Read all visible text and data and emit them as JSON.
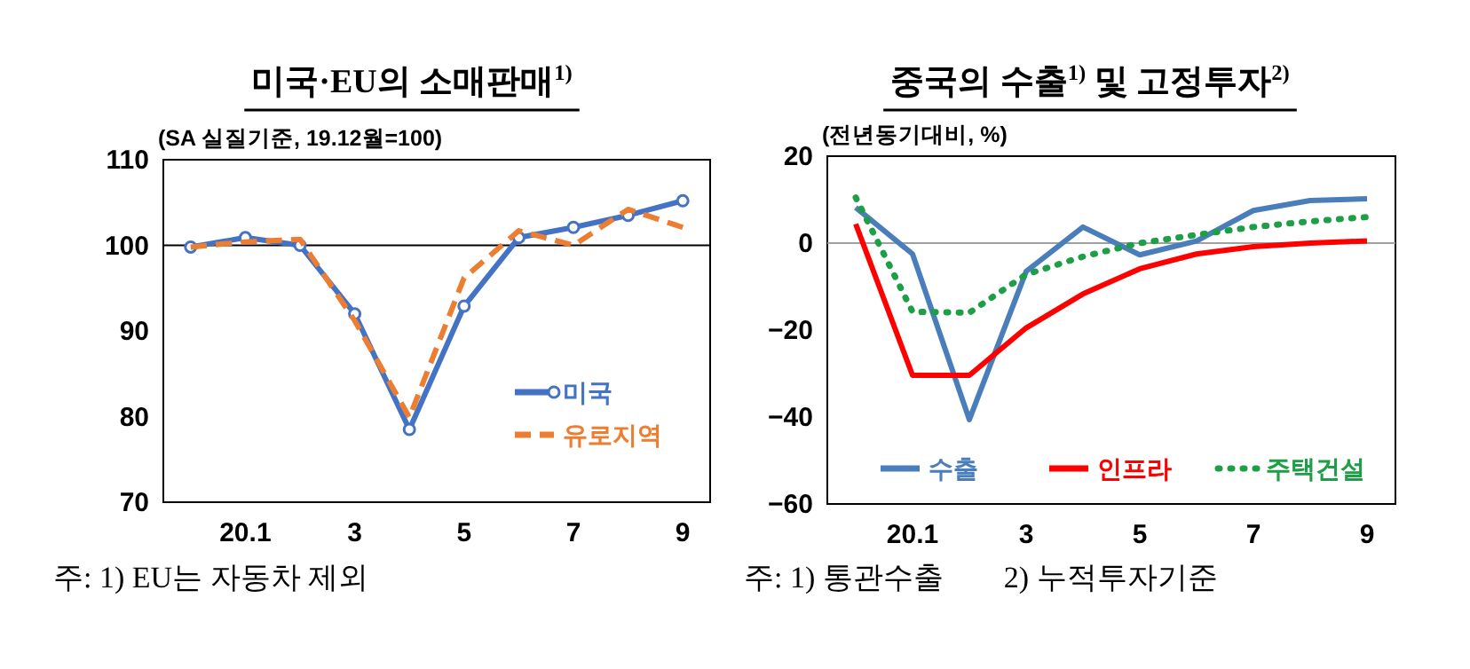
{
  "chart_data": [
    {
      "type": "line",
      "title": "미국·EU의 소매판매$^{1)}$",
      "ylabel": "(SA 실질기준, 19.12월=100)",
      "categories": [
        null,
        "20.1",
        null,
        "3",
        null,
        "5",
        null,
        "7",
        null,
        "9"
      ],
      "series": [
        {
          "name": "미국",
          "color": "#4472c4",
          "marker": "circle",
          "line_style": "solid",
          "values": [
            99.8,
            100.9,
            100,
            92,
            78.5,
            92.9,
            100.9,
            102.1,
            103.5,
            105.2
          ]
        },
        {
          "name": "유로지역",
          "color": "#ed7d31",
          "marker": "none",
          "line_style": "dashed",
          "values": [
            99.8,
            100.4,
            100.7,
            91.2,
            79.9,
            96.2,
            101.7,
            100,
            104.2,
            102.1
          ]
        }
      ],
      "ylim": [
        70,
        110
      ],
      "yticks": [
        70,
        80,
        90,
        100,
        110
      ],
      "ref_lines": [
        {
          "axis": "y",
          "value": 100,
          "color": "#000000"
        }
      ],
      "legend": "bottom right",
      "grid": false,
      "annotations": [
        "주: 1) EU는 자동차 제외"
      ]
    },
    {
      "type": "line",
      "title": "중국의 수출$^{1)}$ 및 고정투자$^{2)}$",
      "ylabel": "(전년동기대비, %)",
      "categories": [
        null,
        "20.1",
        null,
        "3",
        null,
        "5",
        null,
        "7",
        null,
        "9"
      ],
      "series": [
        {
          "name": "수출",
          "color": "#4a7ebb",
          "marker": "none",
          "line_style": "solid",
          "values": [
            8.2,
            -2.5,
            -40.6,
            -6.5,
            3.7,
            -2.7,
            0.5,
            7.5,
            9.8,
            10.2
          ]
        },
        {
          "name": "인프라",
          "color": "#ff0000",
          "marker": "none",
          "line_style": "solid",
          "values": [
            4.4,
            -30.4,
            -30.4,
            -19.5,
            -11.7,
            -5.9,
            -2.5,
            -0.8,
            0,
            0.5
          ]
        },
        {
          "name": "주택건설",
          "color": "#1e9e46",
          "marker": "none",
          "line_style": "dotted",
          "values": [
            10.5,
            -15.8,
            -16,
            -7.2,
            -3.1,
            0,
            1.9,
            3.7,
            5,
            6
          ]
        }
      ],
      "ylim": [
        -60,
        20
      ],
      "yticks": [
        -60,
        -40,
        -20,
        0,
        20
      ],
      "ref_lines": [
        {
          "axis": "y",
          "value": 0,
          "color": "#a0a0a0"
        }
      ],
      "legend": "bottom",
      "grid": false,
      "annotations": [
        "주: 1) 통관수출        2) 누적투자기준"
      ]
    }
  ]
}
